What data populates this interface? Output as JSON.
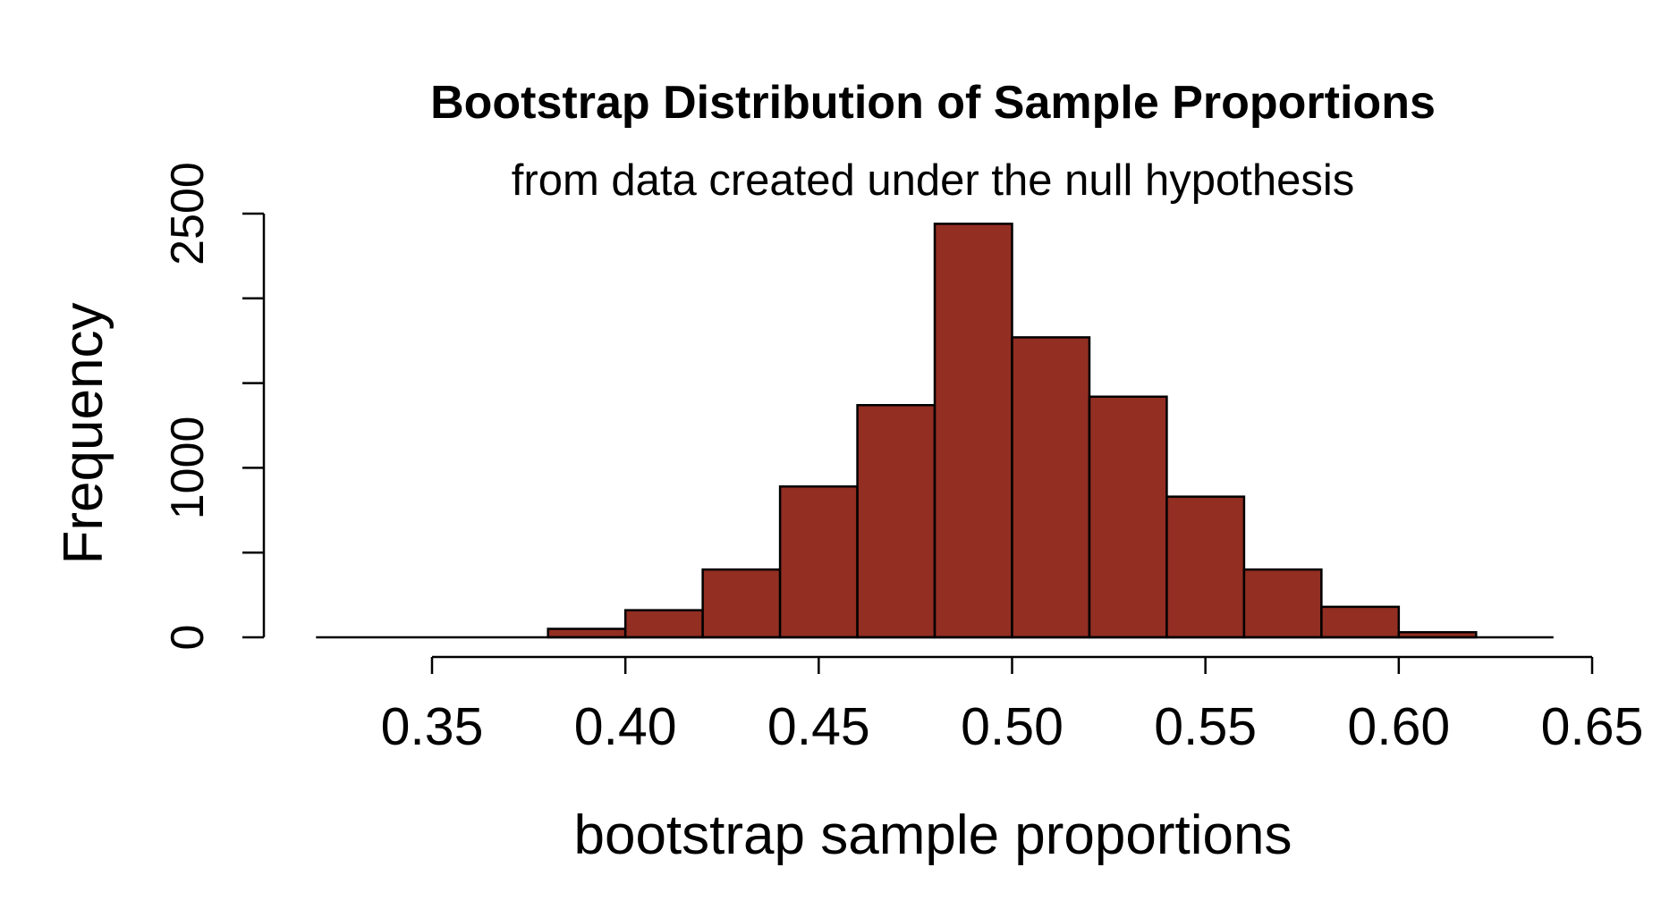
{
  "chart_data": {
    "type": "bar",
    "title": "Bootstrap Distribution of Sample Proportions",
    "subtitle": "from data created under the null hypothesis",
    "xlabel": "bootstrap sample proportions",
    "ylabel": "Frequency",
    "bin_width": 0.02,
    "bins": [
      {
        "start": 0.38,
        "end": 0.4,
        "value": 50
      },
      {
        "start": 0.4,
        "end": 0.42,
        "value": 160
      },
      {
        "start": 0.42,
        "end": 0.44,
        "value": 400
      },
      {
        "start": 0.44,
        "end": 0.46,
        "value": 890
      },
      {
        "start": 0.46,
        "end": 0.48,
        "value": 1370
      },
      {
        "start": 0.48,
        "end": 0.5,
        "value": 2440
      },
      {
        "start": 0.5,
        "end": 0.52,
        "value": 1770
      },
      {
        "start": 0.52,
        "end": 0.54,
        "value": 1420
      },
      {
        "start": 0.54,
        "end": 0.56,
        "value": 830
      },
      {
        "start": 0.56,
        "end": 0.58,
        "value": 400
      },
      {
        "start": 0.58,
        "end": 0.6,
        "value": 180
      },
      {
        "start": 0.6,
        "end": 0.62,
        "value": 30
      }
    ],
    "x_ticks": [
      "0.35",
      "0.40",
      "0.45",
      "0.50",
      "0.55",
      "0.60",
      "0.65"
    ],
    "x_tick_values": [
      0.35,
      0.4,
      0.45,
      0.5,
      0.55,
      0.6,
      0.65
    ],
    "y_ticks": [
      0,
      500,
      1000,
      1500,
      2000,
      2500
    ],
    "y_tick_labels": [
      "0",
      "",
      "1000",
      "",
      "",
      "2500"
    ],
    "xlim": [
      0.35,
      0.65
    ],
    "ylim": [
      0,
      2500
    ],
    "baseline_range": [
      0.32,
      0.64
    ],
    "bar_color": "#922E22",
    "bar_edge_color": "#000000",
    "grid": false
  }
}
